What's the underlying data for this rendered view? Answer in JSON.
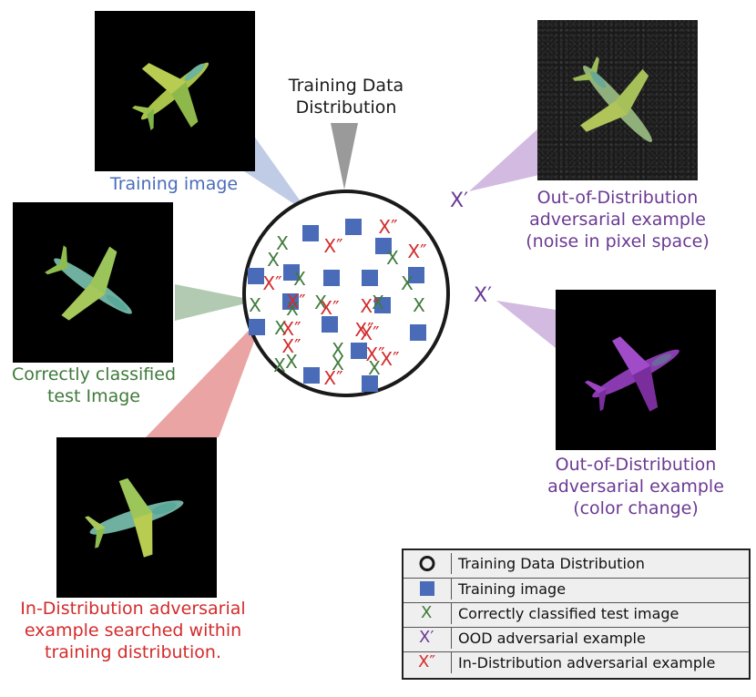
{
  "central_label": "Training Data\nDistribution",
  "labels": {
    "training_image": "Training image",
    "correct_test": "Correctly classified\ntest Image",
    "in_dist": "In-Distribution adversarial\nexample searched within\ntraining distribution.",
    "ood_noise": "Out-of-Distribution\nadversarial example\n(noise in pixel space)",
    "ood_color": "Out-of-Distribution\nadversarial example\n(color change)"
  },
  "markers": {
    "x": "X",
    "x_prime": "X′",
    "x_double": "X″"
  },
  "legend": [
    {
      "symbol": "circle",
      "text": "Training Data Distribution"
    },
    {
      "symbol": "square",
      "text": "Training image"
    },
    {
      "symbol": "x",
      "text": "Correctly classified test image"
    },
    {
      "symbol": "x_prime",
      "text": "OOD adversarial example"
    },
    {
      "symbol": "x_double",
      "text": "In-Distribution adversarial example"
    }
  ],
  "colors": {
    "blue": "#4a6cb8",
    "green": "#3f7a3a",
    "red": "#d42b2b",
    "purple": "#6b3a93",
    "gray": "#9a9a9a",
    "circle": "#1a1a1a"
  }
}
